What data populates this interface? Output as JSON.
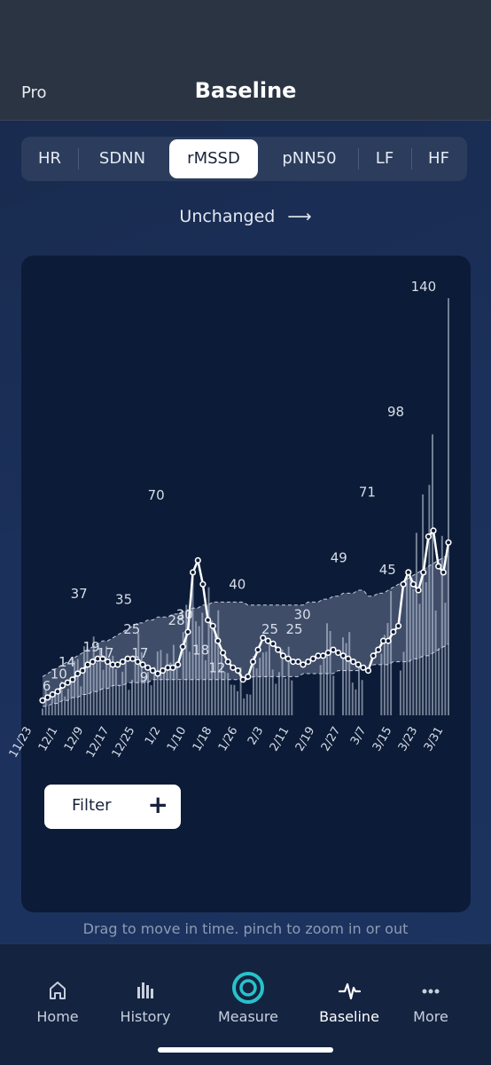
{
  "header": {
    "left_label": "Pro",
    "title": "Baseline"
  },
  "metric_tabs": [
    {
      "label": "HR",
      "active": false
    },
    {
      "label": "SDNN",
      "active": false
    },
    {
      "label": "rMSSD",
      "active": true
    },
    {
      "label": "pNN50",
      "active": false
    },
    {
      "label": "LF",
      "active": false
    },
    {
      "label": "HF",
      "active": false
    }
  ],
  "trend": {
    "label": "Unchanged",
    "arrow": "⟶"
  },
  "chart_data": {
    "type": "bar",
    "x_tick_labels": [
      "11/23",
      "12/1",
      "12/9",
      "12/17",
      "12/25",
      "1/2",
      "1/10",
      "1/18",
      "1/26",
      "2/3",
      "2/11",
      "2/19",
      "2/27",
      "3/7",
      "3/15",
      "3/23",
      "3/31"
    ],
    "value_labels": [
      {
        "text": "6",
        "value": 6
      },
      {
        "text": "10",
        "value": 10
      },
      {
        "text": "14",
        "value": 14
      },
      {
        "text": "37",
        "value": 37
      },
      {
        "text": "19",
        "value": 19
      },
      {
        "text": "17",
        "value": 17
      },
      {
        "text": "35",
        "value": 35
      },
      {
        "text": "25",
        "value": 25
      },
      {
        "text": "17",
        "value": 17
      },
      {
        "text": "9",
        "value": 9
      },
      {
        "text": "70",
        "value": 70
      },
      {
        "text": "28",
        "value": 28
      },
      {
        "text": "30",
        "value": 30
      },
      {
        "text": "18",
        "value": 18
      },
      {
        "text": "12",
        "value": 12
      },
      {
        "text": "40",
        "value": 40
      },
      {
        "text": "25",
        "value": 25
      },
      {
        "text": "25",
        "value": 25
      },
      {
        "text": "30",
        "value": 30
      },
      {
        "text": "49",
        "value": 49
      },
      {
        "text": "71",
        "value": 71
      },
      {
        "text": "45",
        "value": 45
      },
      {
        "text": "98",
        "value": 98
      },
      {
        "text": "140",
        "value": 140
      }
    ],
    "ylim": [
      0,
      140
    ],
    "series": [
      {
        "values": [
          5,
          6,
          7,
          8,
          10,
          11,
          12,
          14,
          15,
          17,
          18,
          19,
          19,
          18,
          17,
          17,
          18,
          19,
          19,
          18,
          17,
          16,
          15,
          14,
          15,
          16,
          16,
          17,
          23,
          28,
          48,
          52,
          44,
          32,
          30,
          25,
          21,
          18,
          16,
          15,
          12,
          13,
          18,
          22,
          26,
          25,
          24,
          22,
          20,
          19,
          18,
          18,
          17,
          18,
          19,
          20,
          20,
          21,
          22,
          21,
          20,
          19,
          18,
          17,
          16,
          15,
          20,
          22,
          25,
          25,
          28,
          30,
          44,
          48,
          44,
          42,
          48,
          60,
          62,
          50,
          48,
          58
        ]
      }
    ],
    "baseline_band": {
      "upper": [
        13,
        14,
        15,
        16,
        17,
        18,
        19,
        20,
        21,
        22,
        23,
        24,
        25,
        25,
        26,
        27,
        28,
        29,
        30,
        31,
        31,
        32,
        32,
        33,
        33,
        33,
        34,
        34,
        35,
        35,
        36,
        36,
        37,
        37,
        38,
        38,
        38,
        38,
        38,
        38,
        38,
        37,
        37,
        37,
        37,
        37,
        37,
        37,
        37,
        37,
        37,
        37,
        37,
        38,
        38,
        38,
        39,
        39,
        40,
        40,
        41,
        41,
        41,
        42,
        42,
        40,
        40,
        41,
        41,
        42,
        43,
        44,
        45,
        46,
        47,
        48,
        49,
        50,
        51,
        52,
        53,
        54
      ],
      "lower": [
        3,
        3,
        4,
        4,
        5,
        5,
        6,
        6,
        7,
        7,
        8,
        8,
        9,
        9,
        10,
        10,
        10,
        11,
        11,
        11,
        11,
        11,
        12,
        12,
        12,
        12,
        12,
        12,
        12,
        12,
        12,
        12,
        12,
        12,
        12,
        12,
        12,
        12,
        12,
        12,
        12,
        12,
        13,
        13,
        13,
        13,
        13,
        13,
        13,
        13,
        13,
        13,
        14,
        14,
        14,
        14,
        14,
        14,
        14,
        15,
        15,
        15,
        15,
        15,
        16,
        16,
        17,
        17,
        17,
        17,
        18,
        18,
        18,
        18,
        19,
        19,
        20,
        20,
        21,
        22,
        23,
        24
      ]
    },
    "grid": false
  },
  "filter": {
    "label": "Filter",
    "icon": "plus-icon"
  },
  "hint": "Drag to move in time. pinch to zoom in or out",
  "tabbar": [
    {
      "label": "Home",
      "icon": "home-icon",
      "active": false
    },
    {
      "label": "History",
      "icon": "bar-chart-icon",
      "active": false
    },
    {
      "label": "Measure",
      "icon": "measure-ring-icon",
      "active": false
    },
    {
      "label": "Baseline",
      "icon": "pulse-icon",
      "active": true
    },
    {
      "label": "More",
      "icon": "more-dots-icon",
      "active": false
    }
  ],
  "colors": {
    "accent": "#27c2c9",
    "card": "#0c1b37",
    "line": "#ffffff"
  }
}
